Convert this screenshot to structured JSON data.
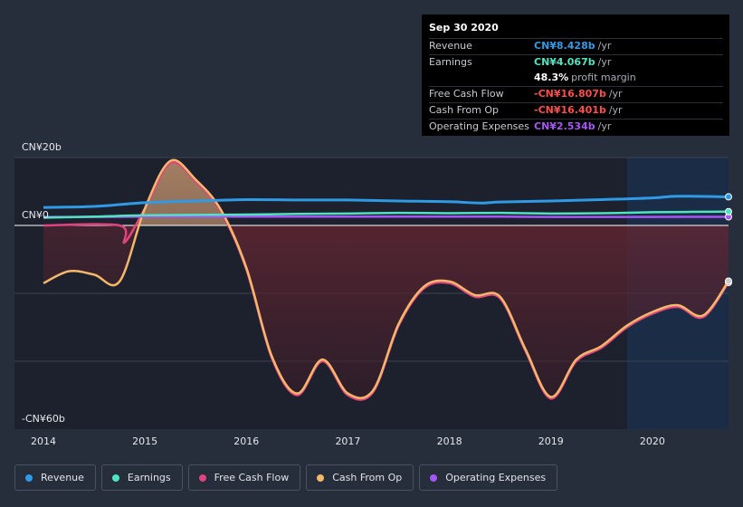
{
  "chart_data": {
    "type": "area",
    "currency": "CN¥",
    "y_labels": {
      "top": "CN¥20b",
      "zero": "CN¥0",
      "bottom": "-CN¥60b"
    },
    "ylim": [
      -60,
      20
    ],
    "xlim": [
      2014.0,
      2020.75
    ],
    "x_ticks": [
      {
        "value": 2014,
        "label": "2014"
      },
      {
        "value": 2015,
        "label": "2015"
      },
      {
        "value": 2016,
        "label": "2016"
      },
      {
        "value": 2017,
        "label": "2017"
      },
      {
        "value": 2018,
        "label": "2018"
      },
      {
        "value": 2019,
        "label": "2019"
      },
      {
        "value": 2020,
        "label": "2020"
      }
    ],
    "forecast_start": 2019.75,
    "series": [
      {
        "name": "Revenue",
        "color": "#2f9ae6",
        "fill": false,
        "points": [
          [
            2014.0,
            5.3
          ],
          [
            2014.5,
            5.6
          ],
          [
            2015.0,
            6.7
          ],
          [
            2015.5,
            7.2
          ],
          [
            2016.0,
            7.6
          ],
          [
            2016.5,
            7.5
          ],
          [
            2017.0,
            7.5
          ],
          [
            2017.5,
            7.2
          ],
          [
            2018.0,
            7.0
          ],
          [
            2018.3,
            6.6
          ],
          [
            2018.5,
            6.9
          ],
          [
            2019.0,
            7.2
          ],
          [
            2019.5,
            7.6
          ],
          [
            2020.0,
            8.1
          ],
          [
            2020.25,
            8.6
          ],
          [
            2020.75,
            8.428
          ]
        ]
      },
      {
        "name": "Earnings",
        "color": "#50e3c2",
        "fill": false,
        "points": [
          [
            2014.0,
            2.3
          ],
          [
            2014.5,
            2.6
          ],
          [
            2015.0,
            3.0
          ],
          [
            2015.5,
            3.1
          ],
          [
            2016.0,
            3.2
          ],
          [
            2016.5,
            3.4
          ],
          [
            2017.0,
            3.5
          ],
          [
            2017.5,
            3.7
          ],
          [
            2018.0,
            3.6
          ],
          [
            2018.5,
            3.7
          ],
          [
            2019.0,
            3.5
          ],
          [
            2019.5,
            3.6
          ],
          [
            2020.0,
            3.9
          ],
          [
            2020.75,
            4.067
          ]
        ]
      },
      {
        "name": "Operating Expenses",
        "color": "#a855f7",
        "fill": false,
        "points": [
          [
            2014.0,
            2.5
          ],
          [
            2014.5,
            2.5
          ],
          [
            2015.0,
            2.6
          ],
          [
            2015.5,
            2.6
          ],
          [
            2016.0,
            2.6
          ],
          [
            2016.5,
            2.6
          ],
          [
            2017.0,
            2.6
          ],
          [
            2017.5,
            2.6
          ],
          [
            2018.0,
            2.6
          ],
          [
            2018.5,
            2.6
          ],
          [
            2019.0,
            2.5
          ],
          [
            2019.5,
            2.5
          ],
          [
            2020.0,
            2.5
          ],
          [
            2020.75,
            2.534
          ]
        ]
      },
      {
        "name": "Free Cash Flow",
        "color": "#e0437e",
        "fill": true,
        "points": [
          [
            2014.0,
            0.0
          ],
          [
            2014.75,
            0.0
          ],
          [
            2014.8,
            -5.0
          ],
          [
            2015.0,
            5.0
          ],
          [
            2015.25,
            18.4
          ],
          [
            2015.5,
            13.0
          ],
          [
            2015.75,
            4.0
          ],
          [
            2016.0,
            -13.0
          ],
          [
            2016.25,
            -39.0
          ],
          [
            2016.5,
            -50.0
          ],
          [
            2016.75,
            -40.0
          ],
          [
            2017.0,
            -50.0
          ],
          [
            2017.25,
            -49.0
          ],
          [
            2017.5,
            -29.5
          ],
          [
            2017.75,
            -18.5
          ],
          [
            2018.0,
            -17.0
          ],
          [
            2018.25,
            -21.0
          ],
          [
            2018.5,
            -21.5
          ],
          [
            2018.75,
            -37.0
          ],
          [
            2019.0,
            -51.0
          ],
          [
            2019.25,
            -40.0
          ],
          [
            2019.5,
            -36.0
          ],
          [
            2019.75,
            -30.0
          ],
          [
            2020.0,
            -26.0
          ],
          [
            2020.25,
            -24.0
          ],
          [
            2020.5,
            -27.0
          ],
          [
            2020.75,
            -16.807
          ]
        ]
      },
      {
        "name": "Cash From Op",
        "color": "#f5b86a",
        "fill": true,
        "points": [
          [
            2014.0,
            -17.0
          ],
          [
            2014.25,
            -13.5
          ],
          [
            2014.5,
            -14.5
          ],
          [
            2014.75,
            -16.5
          ],
          [
            2015.0,
            5.0
          ],
          [
            2015.25,
            19.0
          ],
          [
            2015.5,
            13.5
          ],
          [
            2015.75,
            4.5
          ],
          [
            2016.0,
            -12.5
          ],
          [
            2016.25,
            -38.5
          ],
          [
            2016.5,
            -49.5
          ],
          [
            2016.75,
            -39.5
          ],
          [
            2017.0,
            -49.5
          ],
          [
            2017.25,
            -48.5
          ],
          [
            2017.5,
            -29.0
          ],
          [
            2017.75,
            -18.0
          ],
          [
            2018.0,
            -16.5
          ],
          [
            2018.25,
            -20.5
          ],
          [
            2018.5,
            -21.0
          ],
          [
            2018.75,
            -36.5
          ],
          [
            2019.0,
            -50.5
          ],
          [
            2019.25,
            -39.5
          ],
          [
            2019.5,
            -35.5
          ],
          [
            2019.75,
            -29.5
          ],
          [
            2020.0,
            -25.5
          ],
          [
            2020.25,
            -23.5
          ],
          [
            2020.5,
            -26.5
          ],
          [
            2020.75,
            -16.401
          ]
        ]
      }
    ]
  },
  "tooltip": {
    "date": "Sep 30 2020",
    "rows": [
      {
        "label": "Revenue",
        "value": "CN¥8.428b",
        "unit": "/yr",
        "color": "#2f9ae6"
      },
      {
        "label": "Earnings",
        "value": "CN¥4.067b",
        "unit": "/yr",
        "color": "#50e3c2"
      },
      {
        "label": "",
        "value": "48.3%",
        "unit": "profit margin",
        "color": "#ffffff"
      },
      {
        "label": "Free Cash Flow",
        "value": "-CN¥16.807b",
        "unit": "/yr",
        "color": "#ff4b4b"
      },
      {
        "label": "Cash From Op",
        "value": "-CN¥16.401b",
        "unit": "/yr",
        "color": "#ff4b4b"
      },
      {
        "label": "Operating Expenses",
        "value": "CN¥2.534b",
        "unit": "/yr",
        "color": "#a855f7"
      }
    ]
  },
  "legend": [
    {
      "label": "Revenue",
      "color": "#2f9ae6"
    },
    {
      "label": "Earnings",
      "color": "#50e3c2"
    },
    {
      "label": "Free Cash Flow",
      "color": "#e0437e"
    },
    {
      "label": "Cash From Op",
      "color": "#f5b86a"
    },
    {
      "label": "Operating Expenses",
      "color": "#a855f7"
    }
  ]
}
